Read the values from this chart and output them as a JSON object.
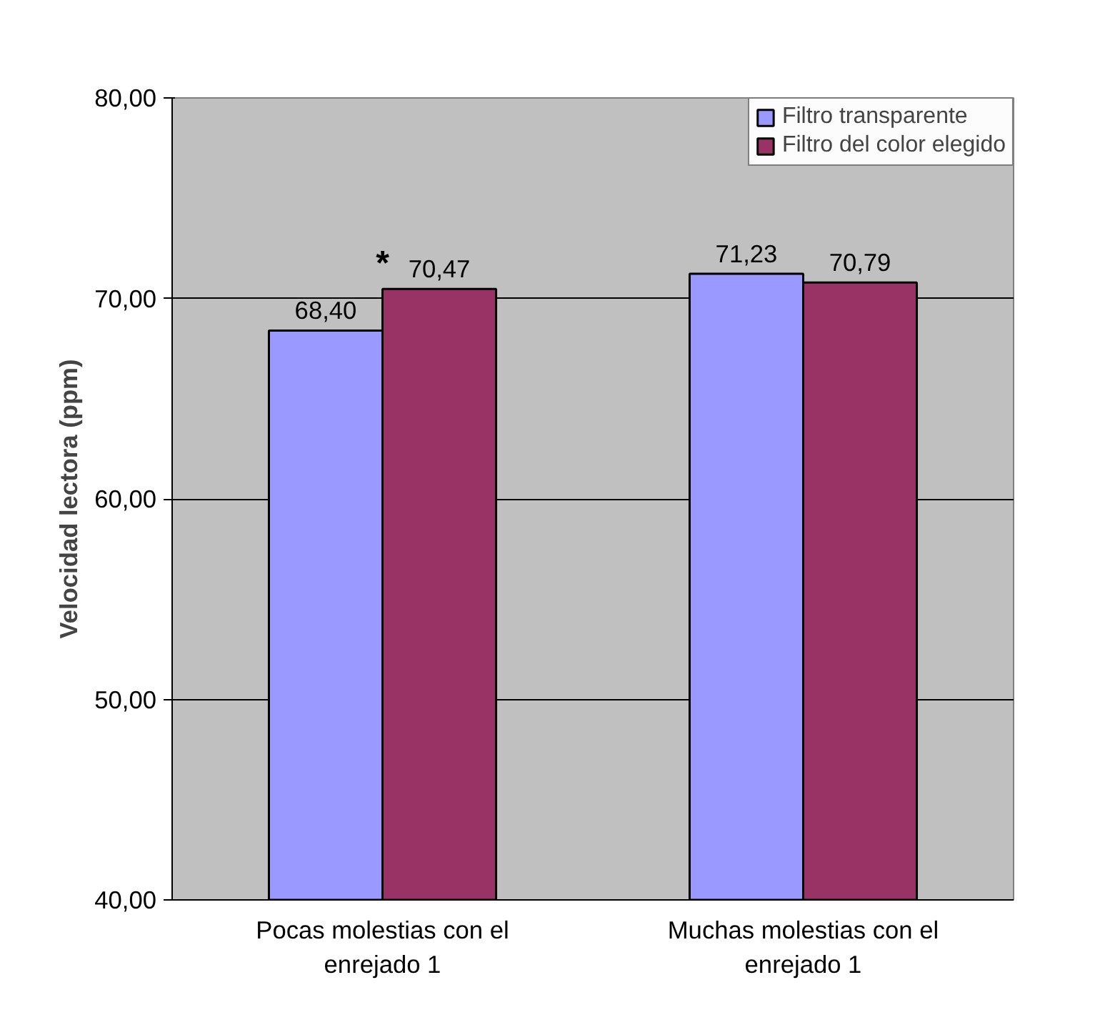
{
  "chart_data": {
    "type": "bar",
    "ylabel": "Velocidad lectora (ppm)",
    "categories": [
      "Pocas molestias con el\nenrejado 1",
      "Muchas molestias con el\nenrejado 1"
    ],
    "series": [
      {
        "name": "Filtro transparente",
        "color": "#9999ff",
        "values": [
          68.4,
          71.23
        ],
        "value_labels": [
          "68,40",
          "71,23"
        ]
      },
      {
        "name": "Filtro del color elegido",
        "color": "#993366",
        "values": [
          70.47,
          70.79
        ],
        "value_labels": [
          "70,47",
          "70,79"
        ]
      }
    ],
    "ylim": [
      40,
      80
    ],
    "yticks": [
      {
        "value": 40,
        "label": "40,00"
      },
      {
        "value": 50,
        "label": "50,00"
      },
      {
        "value": 60,
        "label": "60,00"
      },
      {
        "value": 70,
        "label": "70,00"
      },
      {
        "value": 80,
        "label": "80,00"
      }
    ],
    "annotations": [
      {
        "text": "*",
        "x": "Pocas molestias con el\nenrejado 1",
        "y": 70.47
      }
    ],
    "grid": "y",
    "legend": "top right"
  }
}
